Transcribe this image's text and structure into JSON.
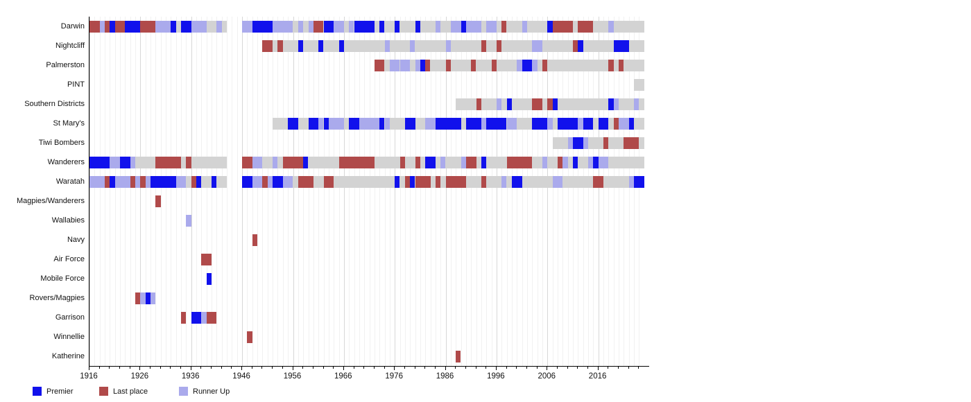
{
  "chart_data": {
    "type": "heatmap",
    "title": "",
    "description": "NTFL club season-results timeline: for each club, seasons as Premier, Last place or Runner Up over a grey bar marking years active",
    "x_axis": {
      "start": 1916,
      "end": 2026,
      "major_ticks": [
        1916,
        1926,
        1936,
        1946,
        1956,
        1966,
        1976,
        1986,
        1996,
        2006,
        2016
      ],
      "minor_tick_step": 2,
      "gridline_step": 1
    },
    "colors": {
      "premier": "#1111EC",
      "last": "#B04A4A",
      "runner": "#AAAAEC",
      "active": "#D3D3D3"
    },
    "legend": [
      {
        "key": "premier",
        "label": "Premier"
      },
      {
        "key": "last",
        "label": "Last place"
      },
      {
        "key": "runner",
        "label": "Runner Up"
      }
    ],
    "teams": [
      {
        "name": "Darwin",
        "active": [
          [
            1916,
            1943
          ],
          [
            1946,
            2025
          ]
        ],
        "segments": [
          [
            "last",
            1916,
            1918
          ],
          [
            "runner",
            1918,
            1919
          ],
          [
            "last",
            1919,
            1920
          ],
          [
            "premier",
            1920,
            1921
          ],
          [
            "last",
            1921,
            1923
          ],
          [
            "premier",
            1923,
            1926
          ],
          [
            "last",
            1926,
            1929
          ],
          [
            "runner",
            1929,
            1932
          ],
          [
            "premier",
            1932,
            1933
          ],
          [
            "premier",
            1934,
            1936
          ],
          [
            "runner",
            1936,
            1939
          ],
          [
            "runner",
            1941,
            1942
          ],
          [
            "runner",
            1946,
            1948
          ],
          [
            "premier",
            1948,
            1952
          ],
          [
            "runner",
            1952,
            1956
          ],
          [
            "runner",
            1957,
            1958
          ],
          [
            "runner",
            1959,
            1960
          ],
          [
            "last",
            1960,
            1962
          ],
          [
            "premier",
            1962,
            1964
          ],
          [
            "runner",
            1964,
            1966
          ],
          [
            "runner",
            1967,
            1968
          ],
          [
            "premier",
            1968,
            1972
          ],
          [
            "premier",
            1973,
            1974
          ],
          [
            "premier",
            1976,
            1977
          ],
          [
            "premier",
            1980,
            1981
          ],
          [
            "runner",
            1984,
            1985
          ],
          [
            "runner",
            1987,
            1989
          ],
          [
            "premier",
            1989,
            1990
          ],
          [
            "runner",
            1990,
            1993
          ],
          [
            "runner",
            1994,
            1996
          ],
          [
            "last",
            1997,
            1998
          ],
          [
            "runner",
            2001,
            2002
          ],
          [
            "premier",
            2006,
            2007
          ],
          [
            "last",
            2007,
            2009
          ],
          [
            "last",
            2009,
            2011
          ],
          [
            "last",
            2012,
            2015
          ],
          [
            "runner",
            2018,
            2019
          ]
        ]
      },
      {
        "name": "Nightcliff",
        "active": [
          [
            1950,
            2025
          ]
        ],
        "segments": [
          [
            "last",
            1950,
            1952
          ],
          [
            "last",
            1953,
            1954
          ],
          [
            "premier",
            1957,
            1958
          ],
          [
            "premier",
            1961,
            1962
          ],
          [
            "premier",
            1965,
            1966
          ],
          [
            "runner",
            1974,
            1975
          ],
          [
            "runner",
            1979,
            1980
          ],
          [
            "runner",
            1986,
            1987
          ],
          [
            "last",
            1993,
            1994
          ],
          [
            "last",
            1996,
            1997
          ],
          [
            "runner",
            2003,
            2004
          ],
          [
            "runner",
            2004,
            2005
          ],
          [
            "last",
            2011,
            2012
          ],
          [
            "premier",
            2012,
            2013
          ],
          [
            "premier",
            2019,
            2022
          ]
        ]
      },
      {
        "name": "Palmerston",
        "active": [
          [
            1972,
            2025
          ]
        ],
        "segments": [
          [
            "last",
            1972,
            1974
          ],
          [
            "runner",
            1975,
            1977
          ],
          [
            "runner",
            1977,
            1979
          ],
          [
            "runner",
            1980,
            1981
          ],
          [
            "premier",
            1981,
            1982
          ],
          [
            "last",
            1982,
            1983
          ],
          [
            "last",
            1986,
            1987
          ],
          [
            "last",
            1991,
            1992
          ],
          [
            "last",
            1995,
            1996
          ],
          [
            "runner",
            2000,
            2001
          ],
          [
            "premier",
            2001,
            2003
          ],
          [
            "runner",
            2003,
            2004
          ],
          [
            "last",
            2005,
            2006
          ],
          [
            "last",
            2018,
            2019
          ],
          [
            "last",
            2020,
            2021
          ]
        ]
      },
      {
        "name": "PINT",
        "active": [
          [
            2023,
            2025
          ]
        ],
        "segments": []
      },
      {
        "name": "Southern Districts",
        "active": [
          [
            1988,
            2025
          ]
        ],
        "segments": [
          [
            "last",
            1992,
            1993
          ],
          [
            "runner",
            1996,
            1997
          ],
          [
            "premier",
            1998,
            1999
          ],
          [
            "last",
            2003,
            2005
          ],
          [
            "last",
            2006,
            2007
          ],
          [
            "premier",
            2007,
            2008
          ],
          [
            "premier",
            2018,
            2019
          ],
          [
            "runner",
            2019,
            2020
          ],
          [
            "runner",
            2023,
            2024
          ]
        ]
      },
      {
        "name": "St Mary's",
        "active": [
          [
            1952,
            2025
          ]
        ],
        "segments": [
          [
            "premier",
            1955,
            1957
          ],
          [
            "premier",
            1959,
            1961
          ],
          [
            "runner",
            1961,
            1962
          ],
          [
            "premier",
            1962,
            1963
          ],
          [
            "runner",
            1963,
            1966
          ],
          [
            "premier",
            1967,
            1969
          ],
          [
            "runner",
            1969,
            1973
          ],
          [
            "premier",
            1973,
            1974
          ],
          [
            "runner",
            1974,
            1975
          ],
          [
            "premier",
            1978,
            1980
          ],
          [
            "runner",
            1982,
            1984
          ],
          [
            "premier",
            1984,
            1989
          ],
          [
            "premier",
            1990,
            1993
          ],
          [
            "runner",
            1993,
            1994
          ],
          [
            "premier",
            1994,
            1998
          ],
          [
            "runner",
            1998,
            2000
          ],
          [
            "premier",
            2003,
            2006
          ],
          [
            "runner",
            2006,
            2007
          ],
          [
            "premier",
            2008,
            2012
          ],
          [
            "runner",
            2012,
            2013
          ],
          [
            "premier",
            2013,
            2015
          ],
          [
            "premier",
            2016,
            2018
          ],
          [
            "last",
            2019,
            2020
          ],
          [
            "runner",
            2020,
            2022
          ],
          [
            "premier",
            2022,
            2023
          ]
        ]
      },
      {
        "name": "Tiwi Bombers",
        "active": [
          [
            2007,
            2025
          ]
        ],
        "segments": [
          [
            "runner",
            2010,
            2011
          ],
          [
            "premier",
            2011,
            2013
          ],
          [
            "runner",
            2013,
            2014
          ],
          [
            "last",
            2017,
            2018
          ],
          [
            "last",
            2021,
            2024
          ]
        ]
      },
      {
        "name": "Wanderers",
        "active": [
          [
            1916,
            1943
          ],
          [
            1946,
            2025
          ]
        ],
        "segments": [
          [
            "premier",
            1916,
            1920
          ],
          [
            "runner",
            1920,
            1922
          ],
          [
            "premier",
            1922,
            1924
          ],
          [
            "runner",
            1924,
            1925
          ],
          [
            "last",
            1929,
            1934
          ],
          [
            "last",
            1935,
            1936
          ],
          [
            "last",
            1946,
            1948
          ],
          [
            "runner",
            1948,
            1950
          ],
          [
            "runner",
            1952,
            1953
          ],
          [
            "last",
            1954,
            1958
          ],
          [
            "premier",
            1958,
            1959
          ],
          [
            "last",
            1965,
            1972
          ],
          [
            "last",
            1977,
            1978
          ],
          [
            "last",
            1980,
            1981
          ],
          [
            "premier",
            1982,
            1984
          ],
          [
            "runner",
            1985,
            1986
          ],
          [
            "runner",
            1989,
            1990
          ],
          [
            "last",
            1990,
            1992
          ],
          [
            "premier",
            1993,
            1994
          ],
          [
            "last",
            1998,
            2003
          ],
          [
            "runner",
            2005,
            2006
          ],
          [
            "last",
            2008,
            2009
          ],
          [
            "runner",
            2009,
            2010
          ],
          [
            "premier",
            2011,
            2012
          ],
          [
            "runner",
            2014,
            2015
          ],
          [
            "premier",
            2015,
            2016
          ],
          [
            "runner",
            2016,
            2018
          ]
        ]
      },
      {
        "name": "Waratah",
        "active": [
          [
            1916,
            1943
          ],
          [
            1946,
            2025
          ]
        ],
        "segments": [
          [
            "runner",
            1916,
            1919
          ],
          [
            "last",
            1919,
            1920
          ],
          [
            "premier",
            1920,
            1921
          ],
          [
            "runner",
            1921,
            1924
          ],
          [
            "last",
            1924,
            1925
          ],
          [
            "runner",
            1925,
            1926
          ],
          [
            "last",
            1926,
            1927
          ],
          [
            "runner",
            1927,
            1928
          ],
          [
            "premier",
            1928,
            1932
          ],
          [
            "premier",
            1932,
            1933
          ],
          [
            "runner",
            1933,
            1935
          ],
          [
            "last",
            1936,
            1937
          ],
          [
            "premier",
            1937,
            1938
          ],
          [
            "premier",
            1940,
            1941
          ],
          [
            "premier",
            1946,
            1948
          ],
          [
            "runner",
            1948,
            1950
          ],
          [
            "last",
            1950,
            1951
          ],
          [
            "runner",
            1951,
            1952
          ],
          [
            "premier",
            1952,
            1954
          ],
          [
            "runner",
            1954,
            1956
          ],
          [
            "last",
            1957,
            1960
          ],
          [
            "last",
            1962,
            1964
          ],
          [
            "premier",
            1976,
            1977
          ],
          [
            "last",
            1978,
            1979
          ],
          [
            "premier",
            1979,
            1980
          ],
          [
            "last",
            1980,
            1983
          ],
          [
            "last",
            1984,
            1985
          ],
          [
            "last",
            1986,
            1990
          ],
          [
            "last",
            1993,
            1994
          ],
          [
            "runner",
            1997,
            1998
          ],
          [
            "premier",
            1999,
            2001
          ],
          [
            "runner",
            2007,
            2009
          ],
          [
            "last",
            2015,
            2017
          ],
          [
            "runner",
            2022,
            2023
          ],
          [
            "premier",
            2023,
            2025
          ]
        ]
      },
      {
        "name": "Magpies/Wanderers",
        "active": [],
        "segments": [
          [
            "last",
            1929,
            1930
          ]
        ]
      },
      {
        "name": "Wallabies",
        "active": [],
        "segments": [
          [
            "runner",
            1935,
            1936
          ]
        ]
      },
      {
        "name": "Navy",
        "active": [],
        "segments": [
          [
            "last",
            1948,
            1949
          ]
        ]
      },
      {
        "name": "Air Force",
        "active": [],
        "segments": [
          [
            "last",
            1938,
            1940
          ]
        ]
      },
      {
        "name": "Mobile Force",
        "active": [],
        "segments": [
          [
            "premier",
            1939,
            1940
          ]
        ]
      },
      {
        "name": "Rovers/Magpies",
        "active": [],
        "segments": [
          [
            "last",
            1925,
            1926
          ],
          [
            "runner",
            1926,
            1927
          ],
          [
            "premier",
            1927,
            1928
          ],
          [
            "runner",
            1928,
            1929
          ]
        ]
      },
      {
        "name": "Garrison",
        "active": [],
        "segments": [
          [
            "last",
            1934,
            1935
          ],
          [
            "premier",
            1936,
            1938
          ],
          [
            "runner",
            1938,
            1939
          ],
          [
            "last",
            1939,
            1941
          ]
        ]
      },
      {
        "name": "Winnellie",
        "active": [],
        "segments": [
          [
            "last",
            1947,
            1948
          ]
        ]
      },
      {
        "name": "Katherine",
        "active": [],
        "segments": [
          [
            "last",
            1988,
            1989
          ]
        ]
      }
    ]
  }
}
